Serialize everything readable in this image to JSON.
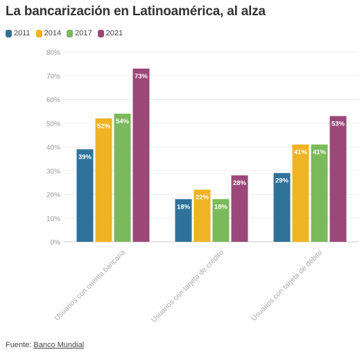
{
  "title": "La bancarización en Latinoamérica, al alza",
  "colors": {
    "2011": "#2e7299",
    "2014": "#f0b323",
    "2017": "#7cb95b",
    "2021": "#9b4879"
  },
  "source": {
    "label": "Fuente:",
    "link_text": "Banco Mundial"
  },
  "chart_data": {
    "type": "bar",
    "title": "La bancarización en Latinoamérica, al alza",
    "categories": [
      "Usuarios con cuenta bancaria",
      "Usuarios con tarjeta de crédito",
      "Usuarios con tarjeta de débito"
    ],
    "series": [
      {
        "name": "2011",
        "values": [
          39,
          18,
          29
        ],
        "labels": [
          "39%",
          "18%",
          "29%"
        ]
      },
      {
        "name": "2014",
        "values": [
          52,
          22,
          41
        ],
        "labels": [
          "52%",
          "22%",
          "41%"
        ]
      },
      {
        "name": "2017",
        "values": [
          54,
          18,
          41
        ],
        "labels": [
          "54%",
          "18%",
          "41%"
        ]
      },
      {
        "name": "2021",
        "values": [
          73,
          28,
          53
        ],
        "labels": [
          "73%",
          "28%",
          "53%"
        ]
      }
    ],
    "ylim": [
      0,
      80
    ],
    "yticks": [
      "0%",
      "10%",
      "20%",
      "30%",
      "40%",
      "50%",
      "60%",
      "70%",
      "80%"
    ],
    "grid": true,
    "legend": "top-left"
  }
}
